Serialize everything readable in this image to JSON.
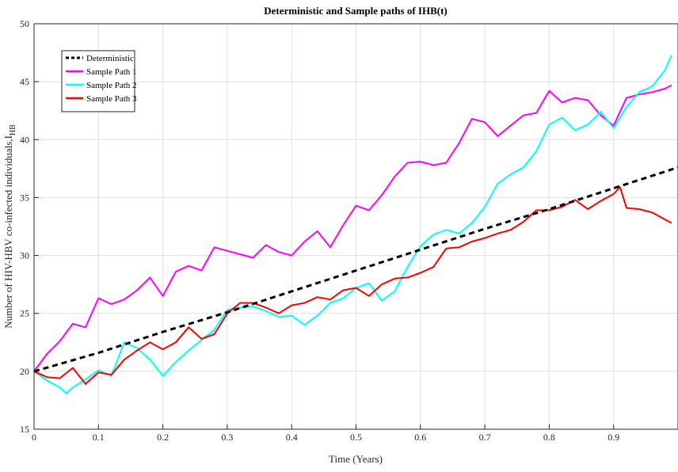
{
  "chart_data": {
    "type": "line",
    "title": "Deterministic and Sample paths of IHB(t)",
    "xlabel": "Time (Years)",
    "ylabel_main": "Number of HIV-HBV co-infected individuals,I",
    "ylabel_sub": "HB",
    "xlim": [
      0,
      1
    ],
    "ylim": [
      15,
      50
    ],
    "xticks": [
      0,
      0.1,
      0.2,
      0.3,
      0.4,
      0.5,
      0.6,
      0.7,
      0.8,
      0.9
    ],
    "xtick_labels": [
      "0",
      "0.1",
      "0.2",
      "0.3",
      "0.4",
      "0.5",
      "0.6",
      "0.7",
      "0.8",
      "0.9"
    ],
    "yticks": [
      15,
      20,
      25,
      30,
      35,
      40,
      45,
      50
    ],
    "ytick_labels": [
      "15",
      "20",
      "25",
      "30",
      "35",
      "40",
      "45",
      "50"
    ],
    "grid": true,
    "legend_position": "top-left",
    "series": [
      {
        "name": "Deterministic",
        "color": "#000000",
        "dash": true,
        "x": [
          0,
          0.1,
          0.2,
          0.3,
          0.4,
          0.5,
          0.6,
          0.7,
          0.8,
          0.9,
          1.0
        ],
        "y": [
          20.0,
          21.6,
          23.4,
          25.1,
          26.9,
          28.7,
          30.5,
          32.3,
          34.0,
          35.8,
          37.6
        ]
      },
      {
        "name": "Sample Path 1",
        "color": "#ff00ff",
        "dash": false,
        "x": [
          0,
          0.02,
          0.04,
          0.06,
          0.08,
          0.1,
          0.12,
          0.14,
          0.16,
          0.18,
          0.2,
          0.22,
          0.24,
          0.26,
          0.28,
          0.3,
          0.32,
          0.34,
          0.36,
          0.38,
          0.4,
          0.42,
          0.44,
          0.46,
          0.48,
          0.5,
          0.52,
          0.54,
          0.56,
          0.58,
          0.6,
          0.62,
          0.64,
          0.66,
          0.68,
          0.7,
          0.72,
          0.74,
          0.76,
          0.78,
          0.8,
          0.82,
          0.84,
          0.86,
          0.88,
          0.9,
          0.92,
          0.94,
          0.96,
          0.98,
          0.99
        ],
        "y": [
          20.0,
          21.5,
          22.6,
          24.1,
          23.8,
          26.3,
          25.8,
          26.2,
          27.0,
          28.1,
          26.5,
          28.6,
          29.1,
          28.7,
          30.7,
          30.4,
          30.1,
          29.8,
          30.9,
          30.3,
          30.0,
          31.2,
          32.1,
          30.7,
          32.6,
          34.3,
          33.9,
          35.2,
          36.8,
          38.0,
          38.1,
          37.8,
          38.0,
          39.7,
          41.8,
          41.5,
          40.3,
          41.2,
          42.1,
          42.3,
          44.2,
          43.2,
          43.6,
          43.4,
          42.1,
          41.2,
          43.6,
          43.9,
          44.1,
          44.4,
          44.7
        ]
      },
      {
        "name": "Sample Path 2",
        "color": "#00ffff",
        "dash": false,
        "x": [
          0,
          0.02,
          0.04,
          0.05,
          0.06,
          0.08,
          0.1,
          0.12,
          0.14,
          0.16,
          0.18,
          0.2,
          0.22,
          0.24,
          0.26,
          0.28,
          0.3,
          0.32,
          0.34,
          0.36,
          0.38,
          0.4,
          0.42,
          0.44,
          0.46,
          0.48,
          0.5,
          0.52,
          0.54,
          0.56,
          0.58,
          0.6,
          0.62,
          0.64,
          0.66,
          0.68,
          0.7,
          0.72,
          0.74,
          0.76,
          0.78,
          0.8,
          0.82,
          0.84,
          0.86,
          0.88,
          0.9,
          0.92,
          0.94,
          0.96,
          0.98,
          0.99
        ],
        "y": [
          20.0,
          19.2,
          18.6,
          18.1,
          18.6,
          19.3,
          20.1,
          19.6,
          22.5,
          22.0,
          21.0,
          19.6,
          20.8,
          21.8,
          22.7,
          23.6,
          25.3,
          25.5,
          25.6,
          25.2,
          24.7,
          24.8,
          24.0,
          24.8,
          25.9,
          26.3,
          27.2,
          27.6,
          26.1,
          26.9,
          29.0,
          30.8,
          31.8,
          32.2,
          31.9,
          32.8,
          34.2,
          36.2,
          37.0,
          37.6,
          39.0,
          41.3,
          41.9,
          40.8,
          41.3,
          42.4,
          41.0,
          42.8,
          44.1,
          44.6,
          46.0,
          47.3
        ]
      },
      {
        "name": "Sample Path 3",
        "color": "#ff0000",
        "dash": false,
        "x": [
          0,
          0.02,
          0.04,
          0.06,
          0.08,
          0.1,
          0.12,
          0.14,
          0.16,
          0.18,
          0.2,
          0.22,
          0.24,
          0.26,
          0.28,
          0.3,
          0.32,
          0.34,
          0.36,
          0.38,
          0.4,
          0.42,
          0.44,
          0.46,
          0.48,
          0.5,
          0.52,
          0.54,
          0.56,
          0.58,
          0.6,
          0.62,
          0.64,
          0.66,
          0.68,
          0.7,
          0.72,
          0.74,
          0.76,
          0.78,
          0.8,
          0.82,
          0.84,
          0.86,
          0.88,
          0.9,
          0.91,
          0.92,
          0.94,
          0.96,
          0.98,
          0.99
        ],
        "y": [
          20.0,
          19.5,
          19.4,
          20.3,
          18.9,
          19.9,
          19.7,
          21.0,
          21.8,
          22.5,
          21.9,
          22.5,
          23.8,
          22.8,
          23.2,
          25.0,
          25.9,
          25.9,
          25.5,
          25.0,
          25.7,
          25.9,
          26.4,
          26.2,
          27.0,
          27.2,
          26.5,
          27.5,
          28.0,
          28.1,
          28.5,
          29.0,
          30.6,
          30.7,
          31.2,
          31.5,
          31.9,
          32.2,
          32.9,
          33.9,
          33.9,
          34.2,
          34.8,
          34.0,
          34.7,
          35.3,
          35.9,
          34.1,
          34.0,
          33.7,
          33.1,
          32.8
        ]
      }
    ]
  }
}
